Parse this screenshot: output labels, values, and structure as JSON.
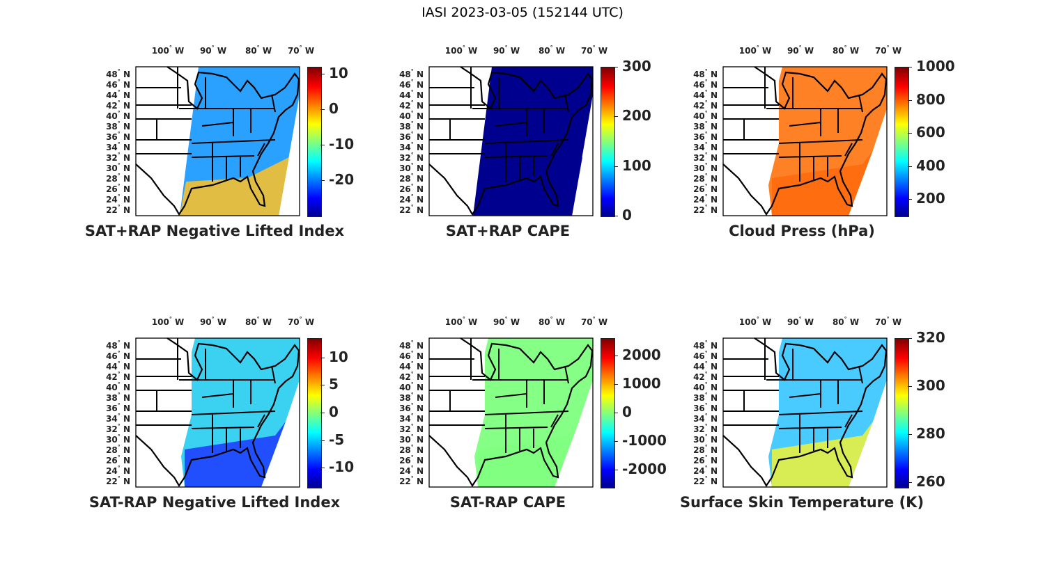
{
  "title": "IASI 2023-03-05 (152144 UTC)",
  "lon_labels": [
    "100",
    "90",
    "80",
    "70"
  ],
  "lon_suffix": "W",
  "lat_labels": [
    "48",
    "46",
    "44",
    "42",
    "40",
    "38",
    "36",
    "34",
    "32",
    "30",
    "28",
    "26",
    "24",
    "22"
  ],
  "lat_suffix": "N",
  "chart_data": [
    {
      "type": "heatmap",
      "title": "SAT+RAP Negative Lifted Index",
      "clim": [
        -30,
        12
      ],
      "ticks": [
        "10",
        "0",
        "-10",
        "-20"
      ],
      "tick_values": [
        10,
        0,
        -10,
        -20
      ],
      "colormap": "jet",
      "dominant": "#2aa0ff",
      "south": "#f5c030"
    },
    {
      "type": "heatmap",
      "title": "SAT+RAP CAPE",
      "clim": [
        0,
        300
      ],
      "ticks": [
        "300",
        "200",
        "100",
        "0"
      ],
      "tick_values": [
        300,
        200,
        100,
        0
      ],
      "colormap": "jet",
      "dominant": "#00008f",
      "south": "#00008f"
    },
    {
      "type": "heatmap",
      "title": "Cloud Press (hPa)",
      "clim": [
        100,
        1000
      ],
      "ticks": [
        "1000",
        "800",
        "600",
        "400",
        "200"
      ],
      "tick_values": [
        1000,
        800,
        600,
        400,
        200
      ],
      "colormap": "jet",
      "dominant": "#ff7a1a",
      "south": "#ff6a10",
      "sparse": true
    },
    {
      "type": "heatmap",
      "title": "SAT-RAP Negative Lifted Index",
      "clim": [
        -13.5,
        13.5
      ],
      "ticks": [
        "10",
        "5",
        "0",
        "-5",
        "-10"
      ],
      "tick_values": [
        10,
        5,
        0,
        -5,
        -10
      ],
      "colormap": "jet",
      "dominant": "#30d0f0",
      "south": "#2040ff",
      "sparse": true
    },
    {
      "type": "heatmap",
      "title": "SAT-RAP CAPE",
      "clim": [
        -2600,
        2600
      ],
      "ticks": [
        "2000",
        "1000",
        "0",
        "-1000",
        "-2000"
      ],
      "tick_values": [
        2000,
        1000,
        0,
        -1000,
        -2000
      ],
      "colormap": "jet",
      "dominant": "#80ff80",
      "south": "#80ff80",
      "sparse": true
    },
    {
      "type": "heatmap",
      "title": "Surface Skin Temperature (K)",
      "clim": [
        258,
        320
      ],
      "ticks": [
        "320",
        "300",
        "280",
        "260"
      ],
      "tick_values": [
        320,
        300,
        280,
        260
      ],
      "colormap": "jet",
      "dominant": "#40c8ff",
      "south": "#e8f040",
      "sparse": true
    }
  ]
}
